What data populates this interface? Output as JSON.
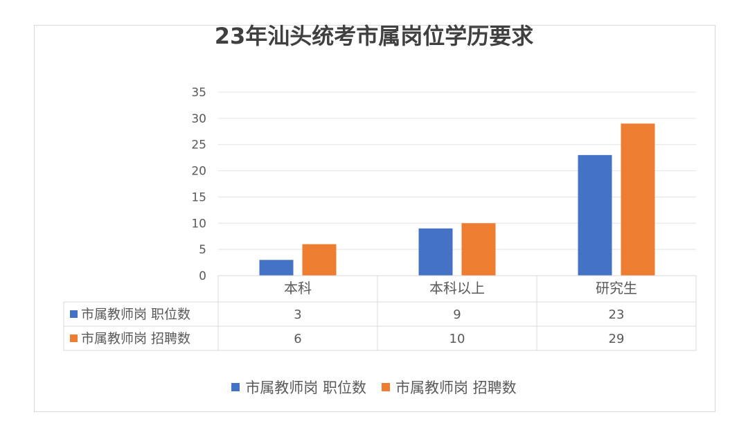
{
  "chart_data": {
    "type": "bar",
    "title": "23年汕头统考市属岗位学历要求",
    "categories": [
      "本科",
      "本科以上",
      "研究生"
    ],
    "series": [
      {
        "name": "市属教师岗 职位数",
        "values": [
          3,
          9,
          23
        ],
        "color": "#4472C4"
      },
      {
        "name": "市属教师岗 招聘数",
        "values": [
          6,
          10,
          29
        ],
        "color": "#ED7D31"
      }
    ],
    "ylim": [
      0,
      35
    ],
    "yticks": [
      0,
      5,
      10,
      15,
      20,
      25,
      30,
      35
    ],
    "grid": true,
    "data_table": true,
    "legend_position": "bottom"
  }
}
